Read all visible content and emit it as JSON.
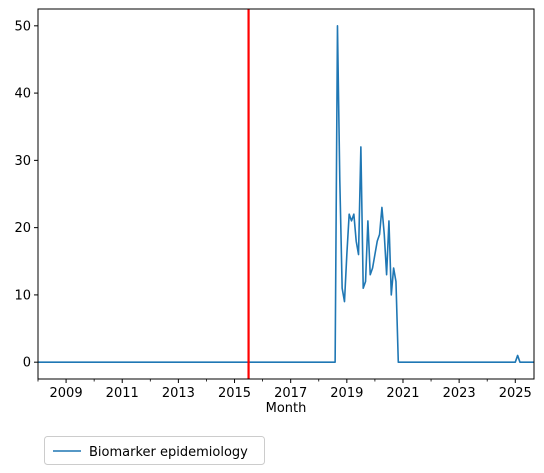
{
  "chart_data": {
    "type": "line",
    "title": "",
    "xlabel": "Month",
    "ylabel": "",
    "x_tick_labels": [
      "2009",
      "2011",
      "2013",
      "2015",
      "2017",
      "2019",
      "2021",
      "2023",
      "2025"
    ],
    "y_tick_labels": [
      "0",
      "10",
      "20",
      "30",
      "40",
      "50"
    ],
    "xlim": [
      "2008-01",
      "2025-09"
    ],
    "ylim": [
      -2.5,
      52.5
    ],
    "grid": false,
    "legend_position": "below-left",
    "vertical_line": {
      "x": "2015-07",
      "color": "#ff0000"
    },
    "series": [
      {
        "name": "Biomarker epidemiology",
        "color": "#1f77b4",
        "points": [
          [
            "2008-01",
            0
          ],
          [
            "2018-08",
            0
          ],
          [
            "2018-09",
            50
          ],
          [
            "2018-10",
            27
          ],
          [
            "2018-11",
            11
          ],
          [
            "2018-12",
            9
          ],
          [
            "2019-01",
            16
          ],
          [
            "2019-02",
            22
          ],
          [
            "2019-03",
            21
          ],
          [
            "2019-04",
            22
          ],
          [
            "2019-05",
            18
          ],
          [
            "2019-06",
            16
          ],
          [
            "2019-07",
            32
          ],
          [
            "2019-08",
            11
          ],
          [
            "2019-09",
            12
          ],
          [
            "2019-10",
            21
          ],
          [
            "2019-11",
            13
          ],
          [
            "2019-12",
            14
          ],
          [
            "2020-01",
            16
          ],
          [
            "2020-02",
            18
          ],
          [
            "2020-03",
            19
          ],
          [
            "2020-04",
            23
          ],
          [
            "2020-05",
            19
          ],
          [
            "2020-06",
            13
          ],
          [
            "2020-07",
            21
          ],
          [
            "2020-08",
            10
          ],
          [
            "2020-09",
            14
          ],
          [
            "2020-10",
            12
          ],
          [
            "2020-11",
            0
          ],
          [
            "2025-01",
            0
          ],
          [
            "2025-02",
            1
          ],
          [
            "2025-03",
            0
          ],
          [
            "2025-09",
            0
          ]
        ]
      }
    ]
  }
}
